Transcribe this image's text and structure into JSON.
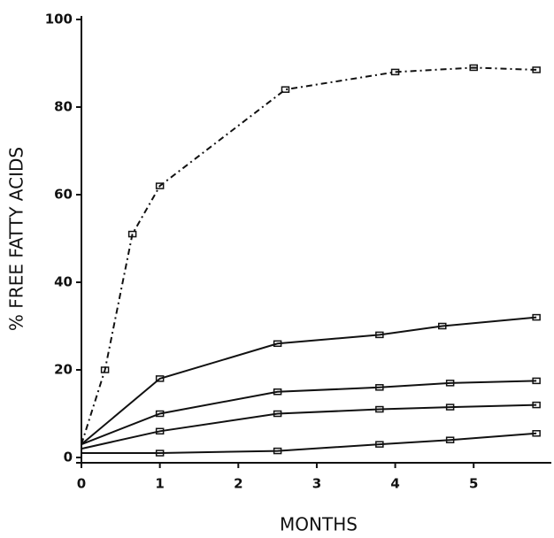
{
  "chart_data": {
    "type": "line",
    "xlabel": "MONTHS",
    "ylabel": "% FREE FATTY ACIDS",
    "xlim": [
      0,
      5.9
    ],
    "xticks": [
      0,
      1,
      2,
      3,
      4,
      5
    ],
    "ylim": [
      0,
      100
    ],
    "yticks": [
      0,
      20,
      40,
      60,
      80,
      100
    ],
    "series": [
      {
        "color": "#111111",
        "dashed": true,
        "x": [
          0,
          0.3,
          0.65,
          1,
          2.6,
          4,
          5,
          5.8
        ],
        "values": [
          3,
          20,
          51,
          62,
          84,
          88,
          89,
          88.5
        ]
      },
      {
        "color": "#111111",
        "dashed": false,
        "x": [
          0,
          1,
          2.5,
          3.8,
          4.6,
          5.8
        ],
        "values": [
          3,
          18,
          26,
          28,
          30,
          32
        ]
      },
      {
        "color": "#111111",
        "dashed": false,
        "x": [
          0,
          1,
          2.5,
          3.8,
          4.7,
          5.8
        ],
        "values": [
          3,
          10,
          15,
          16,
          17,
          17.5
        ]
      },
      {
        "color": "#111111",
        "dashed": false,
        "x": [
          0,
          1,
          2.5,
          3.8,
          4.7,
          5.8
        ],
        "values": [
          2,
          6,
          10,
          11,
          11.5,
          12
        ]
      },
      {
        "color": "#111111",
        "dashed": false,
        "x": [
          0,
          1,
          2.5,
          3.8,
          4.7,
          5.8
        ],
        "values": [
          1,
          1,
          1.5,
          3,
          4,
          5.5
        ]
      }
    ]
  }
}
